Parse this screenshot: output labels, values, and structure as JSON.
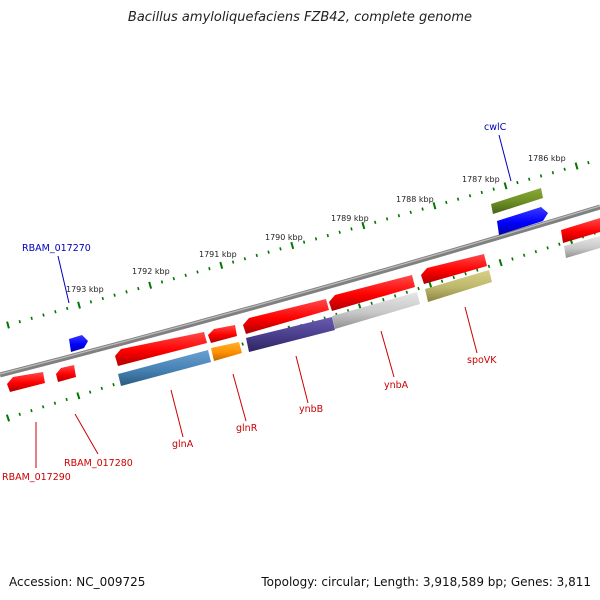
{
  "title": "Bacillus amyloliquefaciens FZB42, complete genome",
  "footer": {
    "accession": "Accession: NC_009725",
    "info": "Topology: circular; Length: 3,918,589 bp; Genes: 3,811"
  },
  "ruler": {
    "tick_labels": [
      "1786 kbp",
      "1787 kbp",
      "1788 kbp",
      "1789 kbp",
      "1790 kbp",
      "1791 kbp",
      "1792 kbp",
      "1793 kbp"
    ]
  },
  "gene_labels": [
    "cwlC",
    "RBAM_017270",
    "RBAM_017280",
    "RBAM_017290",
    "glnA",
    "glnR",
    "ynbB",
    "ynbA",
    "spoVK"
  ],
  "colors": {
    "forward_cds": "#ff0000",
    "reverse_cds": "#ff0000",
    "highlight_forward": "#0000ff",
    "label_forward": "#0000bb",
    "label_reverse": "#cc0000",
    "backbone": "#808080",
    "ticks": "#007700"
  }
}
